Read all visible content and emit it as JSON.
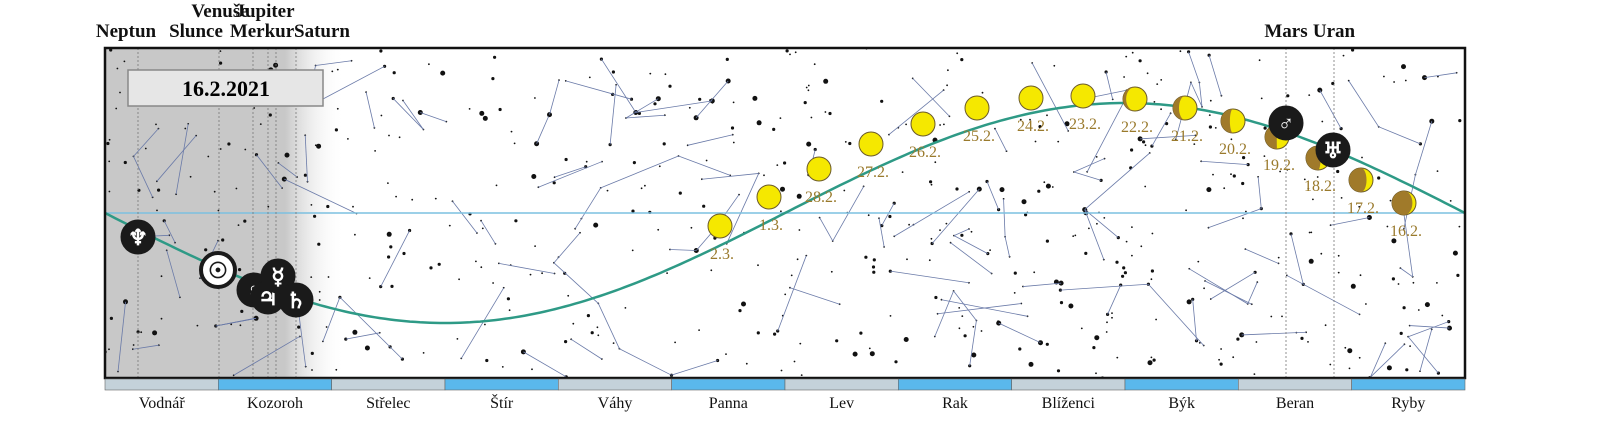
{
  "date": "16.2.2021",
  "planets": [
    {
      "name": "Neptun",
      "symbol": "♆"
    },
    {
      "name": "Slunce",
      "symbol": "☉"
    },
    {
      "name": "Venuše",
      "symbol": "♀"
    },
    {
      "name": "Jupiter",
      "symbol": "♃"
    },
    {
      "name": "Merkur",
      "symbol": "☿"
    },
    {
      "name": "Saturn",
      "symbol": "♄"
    },
    {
      "name": "Mars",
      "symbol": "♂"
    },
    {
      "name": "Uran",
      "symbol": "♅"
    }
  ],
  "moon_dates": [
    "16.2.",
    "17.2.",
    "18.2.",
    "19.2.",
    "20.2.",
    "21.2.",
    "22.2.",
    "23.2.",
    "24.2.",
    "25.2.",
    "26.2.",
    "27.2.",
    "28.2.",
    "1.3.",
    "2.3."
  ],
  "constellations": [
    "Vodnář",
    "Kozoroh",
    "Střelec",
    "Štír",
    "Váhy",
    "Panna",
    "Lev",
    "Rak",
    "Blíženci",
    "Býk",
    "Beran",
    "Ryby"
  ]
}
